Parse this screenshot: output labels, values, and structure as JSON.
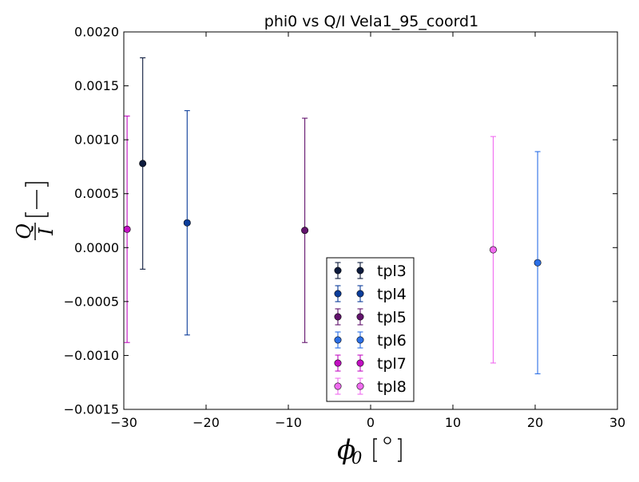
{
  "chart_data": {
    "type": "scatter",
    "title": "phi0 vs Q/I Vela1_95_coord1",
    "xlabel": "ϕ₀ [°]",
    "ylabel": "Q/I [−]",
    "xlim": [
      -30,
      30
    ],
    "ylim": [
      -0.0015,
      0.002
    ],
    "x_ticks": [
      -30,
      -20,
      -10,
      0,
      10,
      20,
      30
    ],
    "x_tick_labels": [
      "−30",
      "−20",
      "−10",
      "0",
      "10",
      "20",
      "30"
    ],
    "y_ticks": [
      -0.0015,
      -0.001,
      -0.0005,
      0,
      0.0005,
      0.001,
      0.0015,
      0.002
    ],
    "y_tick_labels": [
      "−0.0015",
      "−0.0010",
      "−0.0005",
      "0.0000",
      "0.0005",
      "0.0010",
      "0.0015",
      "0.0020"
    ],
    "grid": false,
    "legend_position": "lower-center",
    "series": [
      {
        "name": "tpl3",
        "color": "#0d1b3d",
        "x": -27.7,
        "y": 0.00078,
        "err": 0.00098
      },
      {
        "name": "tpl4",
        "color": "#0c3d9a",
        "x": -22.3,
        "y": 0.00023,
        "err": 0.00104
      },
      {
        "name": "tpl5",
        "color": "#62136d",
        "x": -8.0,
        "y": 0.00016,
        "err": 0.00104
      },
      {
        "name": "tpl6",
        "color": "#2b6fe6",
        "x": 20.3,
        "y": -0.00014,
        "err": 0.00103
      },
      {
        "name": "tpl7",
        "color": "#c20fc2",
        "x": -29.6,
        "y": 0.00017,
        "err": 0.00105
      },
      {
        "name": "tpl8",
        "color": "#f06cf0",
        "x": 14.9,
        "y": -2e-05,
        "err": 0.00105
      }
    ]
  }
}
